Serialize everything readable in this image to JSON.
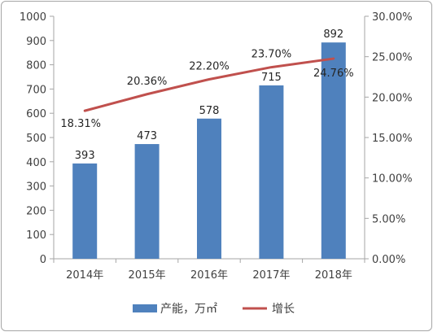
{
  "chart_data": {
    "type": "bar",
    "categories": [
      "2014年",
      "2015年",
      "2016年",
      "2017年",
      "2018年"
    ],
    "series": [
      {
        "name": "产能，万㎡",
        "type": "bar",
        "axis": "left",
        "values": [
          393,
          473,
          578,
          715,
          892
        ],
        "labels": [
          "393",
          "473",
          "578",
          "715",
          "892"
        ]
      },
      {
        "name": "增长",
        "type": "line",
        "axis": "right",
        "values": [
          18.31,
          20.36,
          22.2,
          23.7,
          24.76
        ],
        "labels": [
          "18.31%",
          "20.36%",
          "22.20%",
          "23.70%",
          "24.76%"
        ]
      }
    ],
    "left_axis": {
      "min": 0,
      "max": 1000,
      "step": 100,
      "tick_labels": [
        "0",
        "100",
        "200",
        "300",
        "400",
        "500",
        "600",
        "700",
        "800",
        "900",
        "1000"
      ]
    },
    "right_axis": {
      "min": 0,
      "max": 30,
      "step": 5,
      "tick_labels": [
        "0.00%",
        "5.00%",
        "10.00%",
        "15.00%",
        "20.00%",
        "25.00%",
        "30.00%"
      ]
    },
    "grid": false,
    "legend_position": "bottom",
    "colors": {
      "bar": "#4f81bd",
      "line": "#c0504d",
      "axis": "#a6a6a6",
      "text": "#404040"
    }
  }
}
